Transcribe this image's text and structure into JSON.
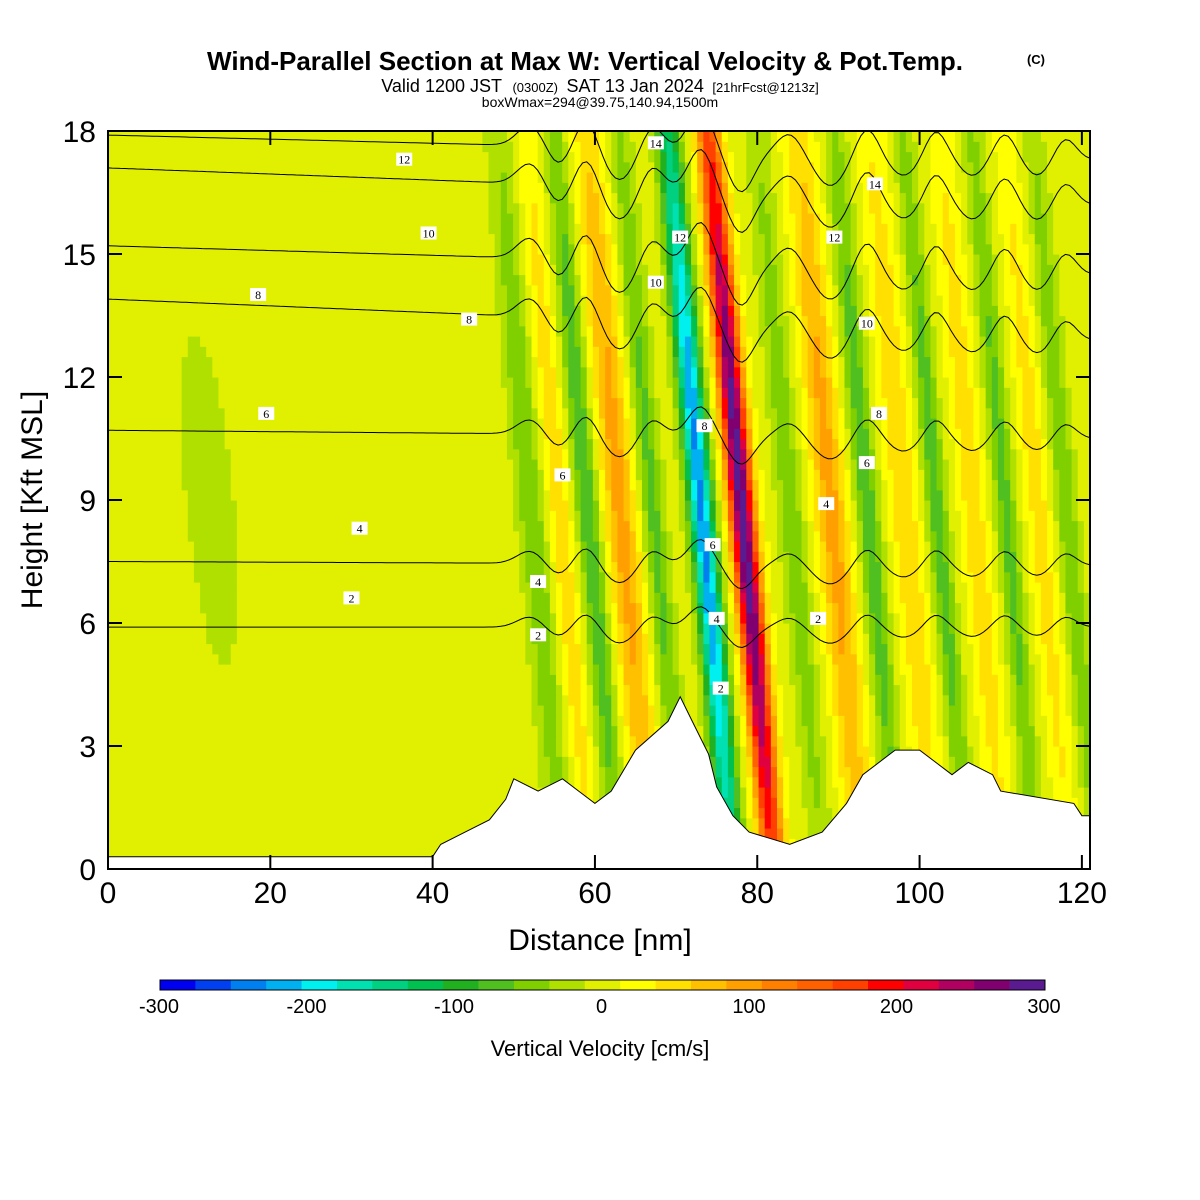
{
  "title": {
    "main": "Wind-Parallel Section at Max W: Vertical Velocity & Pot.Temp.",
    "copyright": "(C)",
    "valid_prefix": "Valid 1200 JST",
    "valid_utc": "(0300Z)",
    "valid_date": "SAT 13 Jan 2024",
    "forecast": "[21hrFcst@1213z]",
    "box_info": "boxWmax=294@39.75,140.94,1500m"
  },
  "axes": {
    "xlabel": "Distance [nm]",
    "ylabel": "Height [Kft MSL]",
    "x_ticks": [
      "0",
      "20",
      "40",
      "60",
      "80",
      "100",
      "120"
    ],
    "y_ticks": [
      "0",
      "3",
      "6",
      "9",
      "12",
      "15",
      "18"
    ]
  },
  "colorbar": {
    "title": "Vertical Velocity [cm/s]",
    "tick_labels": [
      "-300",
      "-200",
      "-100",
      "0",
      "100",
      "200",
      "300"
    ],
    "colors": [
      "#0000f0",
      "#0040f0",
      "#0080f0",
      "#00b0f0",
      "#00f0f0",
      "#00e0b0",
      "#00d080",
      "#00c050",
      "#20b020",
      "#50c020",
      "#80d000",
      "#b0e000",
      "#e0f000",
      "#ffff00",
      "#ffe000",
      "#ffc000",
      "#ffa000",
      "#ff8000",
      "#ff6000",
      "#ff4000",
      "#ff0000",
      "#e00040",
      "#b00060",
      "#800070",
      "#5a1a90"
    ]
  },
  "chart_data": {
    "type": "heatmap",
    "title": "Wind-Parallel Section at Max W: Vertical Velocity & Pot.Temp.",
    "xlabel": "Distance [nm]",
    "ylabel": "Height [Kft MSL]",
    "xlim": [
      0,
      121
    ],
    "ylim": [
      0,
      18
    ],
    "value_range": [
      -300,
      300
    ],
    "value_label": "Vertical Velocity [cm/s]",
    "w_features": [
      {
        "x_center": 6,
        "x_spread": 5,
        "w": 5
      },
      {
        "x_center": 10,
        "x_spread": 12,
        "w": -15
      },
      {
        "x_center": 27,
        "x_spread": 4,
        "w": 8
      },
      {
        "x_center": 52,
        "x_spread": 1.6,
        "w": -60
      },
      {
        "x_center": 55.5,
        "x_spread": 1.4,
        "w": 55
      },
      {
        "x_center": 59,
        "x_spread": 1.4,
        "w": -85
      },
      {
        "x_center": 63,
        "x_spread": 2.0,
        "w": 95
      },
      {
        "x_center": 67,
        "x_spread": 1.4,
        "w": -70
      },
      {
        "x_center": 73,
        "x_spread": 1.5,
        "w": -235
      },
      {
        "x_center": 78,
        "x_spread": 1.6,
        "w": 294
      },
      {
        "x_center": 84,
        "x_spread": 1.5,
        "w": -55
      },
      {
        "x_center": 89,
        "x_spread": 2.0,
        "w": 95
      },
      {
        "x_center": 93.5,
        "x_spread": 1.4,
        "w": -80
      },
      {
        "x_center": 98,
        "x_spread": 1.8,
        "w": 60
      },
      {
        "x_center": 102,
        "x_spread": 1.3,
        "w": -75
      },
      {
        "x_center": 106.5,
        "x_spread": 1.6,
        "w": 55
      },
      {
        "x_center": 110.5,
        "x_spread": 1.3,
        "w": -70
      },
      {
        "x_center": 114.5,
        "x_spread": 1.5,
        "w": 50
      },
      {
        "x_center": 118,
        "x_spread": 1.3,
        "w": -60
      }
    ],
    "terrain": [
      {
        "x": 0,
        "h": 0.3
      },
      {
        "x": 40,
        "h": 0.3
      },
      {
        "x": 41,
        "h": 0.6
      },
      {
        "x": 44,
        "h": 0.9
      },
      {
        "x": 47,
        "h": 1.2
      },
      {
        "x": 49,
        "h": 1.7
      },
      {
        "x": 50,
        "h": 2.2
      },
      {
        "x": 53,
        "h": 1.9
      },
      {
        "x": 56,
        "h": 2.2
      },
      {
        "x": 58,
        "h": 1.9
      },
      {
        "x": 60,
        "h": 1.6
      },
      {
        "x": 62,
        "h": 1.9
      },
      {
        "x": 65,
        "h": 2.9
      },
      {
        "x": 69,
        "h": 3.6
      },
      {
        "x": 70.5,
        "h": 4.2
      },
      {
        "x": 72,
        "h": 3.6
      },
      {
        "x": 74,
        "h": 2.8
      },
      {
        "x": 75,
        "h": 2.0
      },
      {
        "x": 77,
        "h": 1.3
      },
      {
        "x": 79,
        "h": 0.9
      },
      {
        "x": 84,
        "h": 0.6
      },
      {
        "x": 88,
        "h": 0.9
      },
      {
        "x": 91,
        "h": 1.6
      },
      {
        "x": 93,
        "h": 2.3
      },
      {
        "x": 97,
        "h": 2.9
      },
      {
        "x": 100,
        "h": 2.9
      },
      {
        "x": 102,
        "h": 2.6
      },
      {
        "x": 104,
        "h": 2.3
      },
      {
        "x": 106,
        "h": 2.6
      },
      {
        "x": 109,
        "h": 2.3
      },
      {
        "x": 110,
        "h": 1.9
      },
      {
        "x": 119,
        "h": 1.6
      },
      {
        "x": 120,
        "h": 1.3
      },
      {
        "x": 121,
        "h": 1.3
      }
    ],
    "theta_contours": [
      {
        "label": "2",
        "label_at": [
          [
            30,
            6.6
          ],
          [
            53,
            5.7
          ],
          [
            75.5,
            4.4
          ],
          [
            87.5,
            6.1
          ]
        ],
        "y_far": [
          5.9,
          5.9
        ],
        "dip": 0.5
      },
      {
        "label": "4",
        "label_at": [
          [
            31,
            8.3
          ],
          [
            53,
            7.0
          ],
          [
            75,
            6.1
          ],
          [
            88.5,
            8.9
          ]
        ],
        "y_far": [
          7.5,
          7.4
        ],
        "dip": 0.6
      },
      {
        "label": "6",
        "label_at": [
          [
            19.5,
            11.1
          ],
          [
            56,
            9.6
          ],
          [
            74.5,
            7.9
          ],
          [
            93.5,
            9.9
          ]
        ],
        "y_far": [
          10.7,
          10.5
        ],
        "dip": 0.7
      },
      {
        "label": "8",
        "label_at": [
          [
            18.5,
            14.0
          ],
          [
            44.5,
            13.4
          ],
          [
            73.5,
            10.8
          ],
          [
            95,
            11.1
          ]
        ],
        "y_far": [
          13.9,
          12.9
        ],
        "dip": 0.9
      },
      {
        "label": "10",
        "label_at": [
          [
            39.5,
            15.5
          ],
          [
            67.5,
            14.3
          ],
          [
            93.5,
            13.3
          ]
        ],
        "y_far": [
          15.2,
          14.5
        ],
        "dip": 1.0
      },
      {
        "label": "12",
        "label_at": [
          [
            36.5,
            17.3
          ],
          [
            70.5,
            15.4
          ],
          [
            89.5,
            15.4
          ]
        ],
        "y_far": [
          17.1,
          16.2
        ],
        "dip": 1.0
      },
      {
        "label": "14",
        "label_at": [
          [
            67.5,
            17.7
          ],
          [
            94.5,
            16.7
          ]
        ],
        "y_far": [
          17.9,
          17.3
        ],
        "dip": 1.0
      }
    ]
  }
}
